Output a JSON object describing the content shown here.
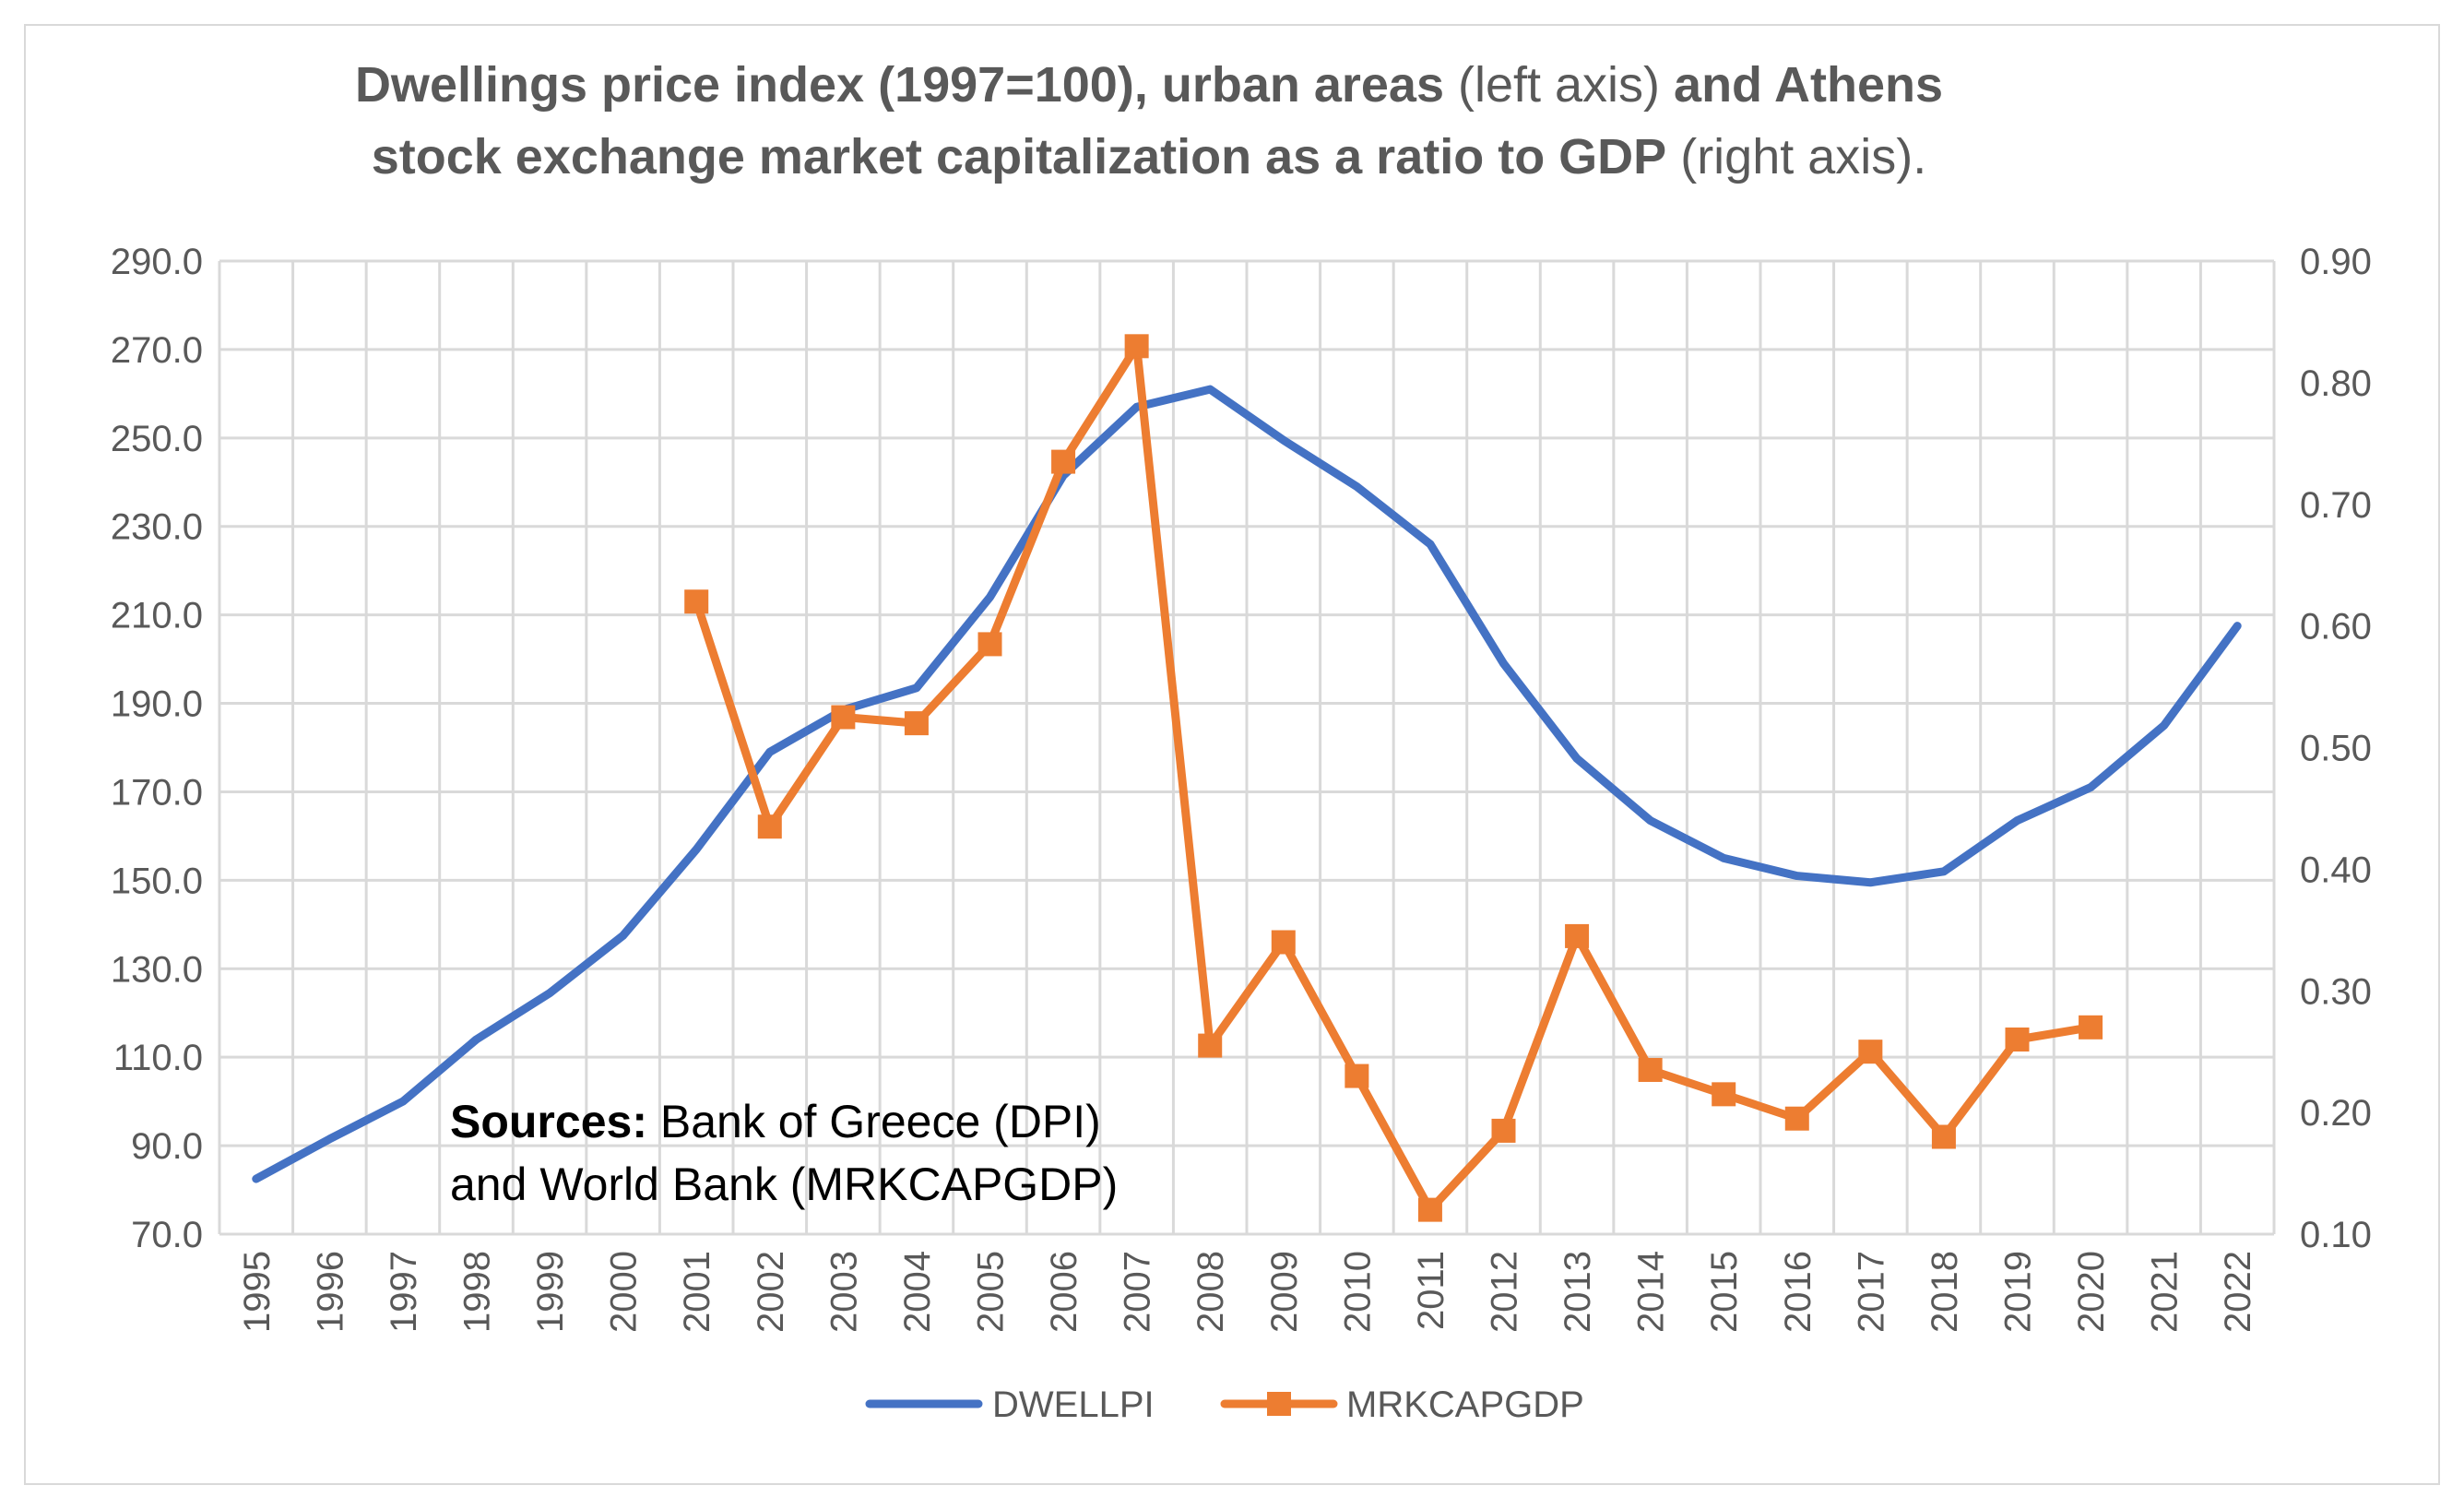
{
  "chart_data": {
    "type": "line",
    "title": {
      "line1": [
        {
          "text": "Dwellings price index (1997=100), urban areas",
          "bold": true
        },
        {
          "text": " (left axis) ",
          "bold": false
        },
        {
          "text": "and Athens",
          "bold": true
        }
      ],
      "line2": [
        {
          "text": "stock exchange market capitalization as a ratio to GDP",
          "bold": true
        },
        {
          "text": " (right axis).",
          "bold": false
        }
      ]
    },
    "categories": [
      "1995",
      "1996",
      "1997",
      "1998",
      "1999",
      "2000",
      "2001",
      "2002",
      "2003",
      "2004",
      "2005",
      "2006",
      "2007",
      "2008",
      "2009",
      "2010",
      "2011",
      "2012",
      "2013",
      "2014",
      "2015",
      "2016",
      "2017",
      "2018",
      "2019",
      "2020",
      "2021",
      "2022"
    ],
    "y_left": {
      "min": 70,
      "max": 290,
      "step": 20,
      "tick_labels": [
        "70.0",
        "90.0",
        "110.0",
        "130.0",
        "150.0",
        "170.0",
        "190.0",
        "210.0",
        "230.0",
        "250.0",
        "270.0",
        "290.0"
      ]
    },
    "y_right": {
      "min": 0.1,
      "max": 0.9,
      "step": 0.1,
      "tick_labels": [
        "0.10",
        "0.20",
        "0.30",
        "0.40",
        "0.50",
        "0.60",
        "0.70",
        "0.80",
        "0.90"
      ]
    },
    "grid": true,
    "legend_position": "bottom",
    "series": [
      {
        "name": "DWELLPI",
        "axis": "left",
        "color": "#4472c4",
        "marker": "none",
        "values": [
          82.5,
          91.5,
          100.0,
          114.0,
          124.5,
          137.5,
          157.0,
          179.0,
          188.5,
          193.5,
          214.0,
          241.5,
          257.0,
          261.0,
          249.5,
          239.0,
          226.0,
          199.0,
          177.5,
          163.5,
          155.0,
          151.0,
          149.5,
          152.0,
          163.5,
          171.0,
          185.0,
          207.5
        ]
      },
      {
        "name": "MRKCAPGDP",
        "axis": "right",
        "color": "#ed7d31",
        "marker": "square",
        "values": [
          null,
          null,
          null,
          null,
          null,
          null,
          0.62,
          0.435,
          0.525,
          0.52,
          0.585,
          0.735,
          0.83,
          0.255,
          0.34,
          0.23,
          0.12,
          0.185,
          0.345,
          0.235,
          0.215,
          0.195,
          0.25,
          0.18,
          0.26,
          0.27,
          null,
          null
        ]
      }
    ],
    "annotation": {
      "bold": "Sources:",
      "line1": " Bank of Greece (DPI)",
      "line2": "and World Bank (MRKCAPGDP)"
    }
  }
}
